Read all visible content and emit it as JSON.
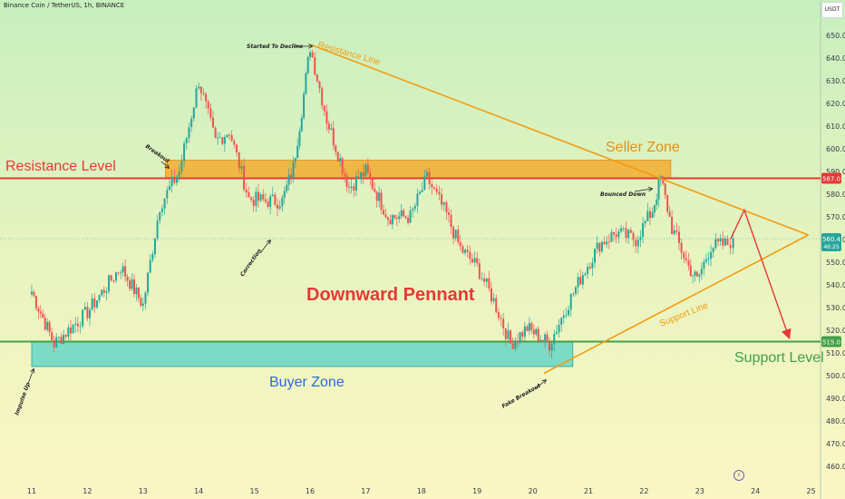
{
  "header": {
    "symbol": "Binance Coin / TetherUS, 1h, BINANCE",
    "currency": "USDT"
  },
  "chart_data": {
    "type": "candlestick",
    "x_axis": {
      "ticks": [
        "11",
        "12",
        "13",
        "14",
        "15",
        "16",
        "17",
        "18",
        "19",
        "20",
        "21",
        "22",
        "23",
        "24",
        "25"
      ]
    },
    "y_axis": {
      "range": [
        455,
        655
      ],
      "ticks": [
        460,
        470,
        480,
        490,
        500,
        510,
        520,
        530,
        540,
        550,
        560,
        570,
        580,
        590,
        600,
        610,
        620,
        630,
        640,
        650
      ],
      "tick_labels": [
        "460.0",
        "470.0",
        "480.0",
        "490.0",
        "500.0",
        "510.0",
        "520.0",
        "530.0",
        "540.0",
        "550.0",
        "560.0",
        "570.0",
        "580.0",
        "590.0",
        "600.0",
        "610.0",
        "620.0",
        "630.0",
        "640.0",
        "650.0"
      ]
    },
    "price_badges": {
      "resistance": "587.0",
      "current": "560.4",
      "countdown": "46:25",
      "support": "515.0"
    },
    "levels": {
      "resistance": 587,
      "support": 515,
      "seller_zone": [
        587,
        595
      ],
      "buyer_zone": [
        504,
        515
      ],
      "current": 560.4
    },
    "pennant": {
      "resistance_line": [
        [
          16.0,
          646
        ],
        [
          24.95,
          562
        ]
      ],
      "support_line": [
        [
          20.2,
          501
        ],
        [
          24.95,
          562
        ]
      ],
      "projection": [
        [
          23.55,
          560
        ],
        [
          23.8,
          573
        ],
        [
          24.6,
          517
        ]
      ]
    },
    "anchors": [
      [
        11.0,
        537
      ],
      [
        11.4,
        514
      ],
      [
        12.0,
        528
      ],
      [
        12.6,
        548
      ],
      [
        13.0,
        531
      ],
      [
        13.3,
        575
      ],
      [
        13.65,
        590
      ],
      [
        14.0,
        630
      ],
      [
        14.3,
        603
      ],
      [
        14.55,
        608
      ],
      [
        14.9,
        578
      ],
      [
        15.2,
        577
      ],
      [
        15.5,
        577
      ],
      [
        15.7,
        592
      ],
      [
        15.85,
        617
      ],
      [
        16.0,
        645
      ],
      [
        16.3,
        613
      ],
      [
        16.7,
        583
      ],
      [
        17.0,
        590
      ],
      [
        17.4,
        570
      ],
      [
        17.8,
        570
      ],
      [
        18.1,
        587
      ],
      [
        18.45,
        571
      ],
      [
        18.7,
        556
      ],
      [
        19.0,
        548
      ],
      [
        19.3,
        533
      ],
      [
        19.6,
        514
      ],
      [
        19.9,
        521
      ],
      [
        20.3,
        514
      ],
      [
        20.6,
        530
      ],
      [
        20.9,
        545
      ],
      [
        21.2,
        558
      ],
      [
        21.5,
        563
      ],
      [
        21.85,
        560
      ],
      [
        22.15,
        573
      ],
      [
        22.3,
        587
      ],
      [
        22.5,
        565
      ],
      [
        22.8,
        548
      ],
      [
        22.95,
        542
      ],
      [
        23.2,
        557
      ],
      [
        23.5,
        558
      ],
      [
        23.6,
        560.4
      ]
    ],
    "annotations": {
      "resistance_level": "Resistance Level",
      "seller_zone": "Seller Zone",
      "downward_pennant": "Downward Pennant",
      "buyer_zone": "Buyer Zone",
      "support_level": "Support Level",
      "resistance_line": "Resistance Line",
      "support_line": "Support Line",
      "started_to_decline": "Started To Decline",
      "breakout": "Breakout",
      "correction": "Correction",
      "impulse_up": "Impulse Up",
      "bounced_down": "Bounced Down",
      "fake_breakout": "Fake Breakout"
    },
    "colors": {
      "up": "#26a69a",
      "down": "#ef5350",
      "resistance": "#e53935",
      "support": "#43a047",
      "pennant": "#f39c12",
      "seller_zone": "#f5a623",
      "buyer_zone": "#4fd1c5",
      "arrow": "#e53935"
    }
  }
}
